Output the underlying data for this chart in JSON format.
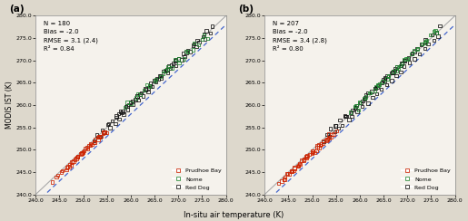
{
  "panel_a": {
    "label": "(a)",
    "stats_text": "N = 180\nBias = -2.0\nRMSE = 3.1 (2.4)\nR² = 0.84",
    "prudhoe_bay_x": [
      243.2,
      244.1,
      244.7,
      245.3,
      245.8,
      246.2,
      246.6,
      247.1,
      247.4,
      247.8,
      248.1,
      248.4,
      248.7,
      249.0,
      249.3,
      249.7,
      250.0,
      250.4,
      250.8,
      251.1,
      251.5,
      251.9,
      252.2,
      252.6,
      253.0,
      253.4,
      253.8,
      254.2,
      247.5,
      248.9,
      250.3,
      251.6,
      252.9,
      254.1,
      255.2,
      249.8,
      250.9,
      252.1,
      253.3,
      254.5,
      246.3,
      247.3,
      248.5,
      249.8
    ],
    "prudhoe_bay_y": [
      243.0,
      243.8,
      244.3,
      244.8,
      245.2,
      245.6,
      246.0,
      246.4,
      246.8,
      247.1,
      247.5,
      247.9,
      248.2,
      248.6,
      248.9,
      249.2,
      249.6,
      250.0,
      250.3,
      250.7,
      251.0,
      251.4,
      251.7,
      252.1,
      252.5,
      252.8,
      253.2,
      253.5,
      247.3,
      248.7,
      250.1,
      251.4,
      252.7,
      253.9,
      254.0,
      249.6,
      250.7,
      251.9,
      253.1,
      254.3,
      245.8,
      246.8,
      248.0,
      249.3
    ],
    "nome_x": [
      259.0,
      260.0,
      261.0,
      262.0,
      263.0,
      264.0,
      265.0,
      266.0,
      267.0,
      268.0,
      269.0,
      270.0,
      271.0,
      272.0,
      273.0,
      274.0,
      275.0,
      276.0,
      259.5,
      261.5,
      263.5,
      265.5,
      267.5,
      269.5,
      271.5,
      273.5,
      275.5,
      264.0,
      267.0,
      270.0
    ],
    "nome_y": [
      259.5,
      260.5,
      261.5,
      262.5,
      263.5,
      264.5,
      265.5,
      266.5,
      267.5,
      268.5,
      268.5,
      269.5,
      270.5,
      272.0,
      272.5,
      273.5,
      274.5,
      275.0,
      260.5,
      262.5,
      264.5,
      266.0,
      268.0,
      270.0,
      272.0,
      274.0,
      275.5,
      264.0,
      267.0,
      270.5
    ],
    "red_dog_x": [
      252.5,
      253.5,
      254.5,
      255.5,
      256.5,
      257.5,
      258.5,
      259.5,
      260.5,
      261.5,
      262.5,
      263.5,
      264.5,
      265.5,
      266.5,
      267.5,
      268.5,
      269.5,
      270.5,
      271.5,
      272.5,
      273.5,
      274.5,
      275.5,
      276.5,
      253.0,
      254.0,
      255.0,
      256.0,
      257.0,
      258.0,
      259.0,
      260.0,
      261.0,
      262.0,
      263.0,
      264.0,
      265.0,
      266.0,
      267.0,
      268.0,
      269.0,
      270.0,
      271.0,
      272.0,
      273.0,
      274.0,
      275.0,
      276.0,
      277.0,
      258.3,
      259.3,
      260.3,
      261.3,
      262.3,
      263.3,
      264.3,
      265.3,
      266.3,
      267.3,
      268.3,
      269.3,
      255.5,
      257.5,
      259.5,
      261.5,
      263.5,
      265.5,
      267.5,
      269.5,
      271.5,
      273.5,
      275.5,
      257.0,
      258.0
    ],
    "red_dog_y": [
      252.0,
      253.0,
      254.0,
      255.0,
      256.0,
      257.0,
      258.0,
      259.0,
      260.0,
      261.0,
      262.0,
      263.0,
      264.0,
      265.0,
      266.0,
      267.0,
      268.0,
      269.0,
      270.0,
      271.0,
      272.0,
      273.0,
      274.0,
      275.0,
      276.0,
      253.5,
      254.5,
      255.5,
      256.5,
      257.5,
      258.5,
      259.5,
      260.5,
      261.5,
      262.5,
      263.5,
      264.5,
      265.5,
      266.5,
      267.5,
      268.5,
      269.5,
      270.5,
      271.5,
      272.5,
      273.5,
      274.5,
      275.5,
      276.5,
      277.5,
      258.8,
      259.8,
      260.8,
      261.8,
      262.8,
      263.8,
      264.8,
      265.8,
      266.8,
      267.8,
      268.8,
      269.8,
      256.0,
      258.0,
      260.0,
      262.0,
      264.0,
      266.0,
      268.0,
      270.0,
      272.0,
      274.0,
      276.0,
      257.5,
      258.5
    ]
  },
  "panel_b": {
    "label": "(b)",
    "stats_text": "N = 207\nBias = -2.0\nRMSE = 3.4 (2.8)\nR² = 0.80",
    "prudhoe_bay_x": [
      242.8,
      243.5,
      244.0,
      244.5,
      245.0,
      245.5,
      246.0,
      246.5,
      247.0,
      247.5,
      248.0,
      248.5,
      249.0,
      249.5,
      250.0,
      250.5,
      251.0,
      251.5,
      252.0,
      252.5,
      253.0,
      253.5,
      254.0,
      254.5,
      244.8,
      246.2,
      247.5,
      248.8,
      250.0,
      251.2,
      252.4,
      253.6,
      245.5,
      247.0,
      248.5,
      250.0,
      251.5,
      253.0,
      244.0,
      245.0,
      246.0,
      247.0,
      248.0,
      249.0,
      250.0,
      251.0,
      252.0,
      253.0,
      254.0,
      255.0
    ],
    "prudhoe_bay_y": [
      242.5,
      243.0,
      243.5,
      244.0,
      244.5,
      245.0,
      245.5,
      246.0,
      246.5,
      247.0,
      247.5,
      248.0,
      248.5,
      249.0,
      249.5,
      249.5,
      250.0,
      250.5,
      251.0,
      251.5,
      252.0,
      252.5,
      253.0,
      253.5,
      244.5,
      245.8,
      247.0,
      248.3,
      249.5,
      250.8,
      252.0,
      253.3,
      245.0,
      246.5,
      248.0,
      249.5,
      251.0,
      252.5,
      243.5,
      244.5,
      245.5,
      246.5,
      247.5,
      248.5,
      249.5,
      250.5,
      251.5,
      252.5,
      253.5,
      254.5
    ],
    "nome_x": [
      258.0,
      259.0,
      260.0,
      261.0,
      262.0,
      263.0,
      264.0,
      265.0,
      266.0,
      267.0,
      268.0,
      269.0,
      270.0,
      271.0,
      272.0,
      273.0,
      274.0,
      275.0,
      276.0,
      259.5,
      261.5,
      263.5,
      265.5,
      267.5,
      269.5,
      271.5,
      273.5,
      275.5,
      260.0,
      262.0,
      264.0,
      266.0,
      268.0,
      270.0,
      272.0,
      274.0,
      276.0,
      259.5,
      264.0,
      268.5,
      273.0
    ],
    "nome_y": [
      258.5,
      259.5,
      260.5,
      261.5,
      262.5,
      263.5,
      264.5,
      265.5,
      266.5,
      267.5,
      268.5,
      269.5,
      270.5,
      271.5,
      272.5,
      273.5,
      274.5,
      275.5,
      276.5,
      260.0,
      262.0,
      264.0,
      266.0,
      268.0,
      270.0,
      272.0,
      274.0,
      276.5,
      260.5,
      262.5,
      264.5,
      266.5,
      268.5,
      270.5,
      272.5,
      274.5,
      276.5,
      259.0,
      264.5,
      269.0,
      273.5
    ],
    "red_dog_x": [
      252.5,
      253.5,
      254.5,
      255.5,
      256.5,
      257.5,
      258.5,
      259.5,
      260.5,
      261.5,
      262.5,
      263.5,
      264.5,
      265.5,
      266.5,
      267.5,
      268.5,
      269.5,
      270.5,
      271.5,
      272.5,
      273.5,
      274.5,
      275.5,
      276.5,
      253.0,
      254.0,
      255.0,
      256.0,
      257.0,
      258.0,
      259.0,
      260.0,
      261.0,
      262.0,
      263.0,
      264.0,
      265.0,
      266.0,
      267.0,
      268.0,
      269.0,
      270.0,
      271.0,
      272.0,
      273.0,
      274.0,
      275.0,
      276.0,
      277.0,
      258.5,
      259.5,
      260.5,
      261.5,
      262.5,
      263.5,
      264.5,
      265.5,
      266.5,
      267.5,
      268.5,
      269.5,
      255.0,
      257.0,
      259.0,
      261.0,
      263.0,
      265.0,
      267.0,
      269.0,
      271.0,
      273.0,
      257.0,
      261.0,
      263.5,
      265.5,
      267.5,
      269.5,
      271.5,
      273.5
    ],
    "red_dog_y": [
      252.0,
      253.0,
      254.0,
      255.0,
      255.5,
      256.5,
      257.5,
      258.5,
      259.5,
      260.5,
      261.5,
      262.5,
      263.5,
      264.5,
      265.5,
      266.5,
      267.5,
      268.5,
      269.5,
      270.5,
      271.5,
      272.5,
      273.5,
      274.5,
      275.5,
      253.5,
      254.5,
      255.5,
      256.5,
      257.5,
      258.5,
      259.5,
      260.5,
      261.5,
      262.5,
      263.5,
      264.5,
      265.5,
      266.5,
      267.5,
      268.5,
      269.5,
      270.5,
      271.5,
      272.5,
      273.5,
      274.5,
      275.5,
      276.5,
      277.5,
      259.0,
      260.0,
      261.0,
      262.0,
      263.0,
      264.0,
      265.0,
      266.0,
      267.0,
      268.0,
      269.0,
      270.0,
      255.5,
      257.5,
      259.5,
      261.5,
      263.5,
      265.5,
      267.5,
      269.5,
      271.5,
      273.5,
      257.5,
      261.5,
      264.0,
      266.0,
      268.0,
      270.0,
      272.0,
      274.0
    ]
  },
  "xlim": [
    240.0,
    280.0
  ],
  "ylim": [
    240.0,
    280.0
  ],
  "xticks": [
    240.0,
    245.0,
    250.0,
    255.0,
    260.0,
    265.0,
    270.0,
    275.0,
    280.0
  ],
  "yticks": [
    240.0,
    245.0,
    250.0,
    255.0,
    260.0,
    265.0,
    270.0,
    275.0,
    280.0
  ],
  "xlabel": "In-situ air temperature (K)",
  "ylabel": "MODIS IST (K)",
  "colors": {
    "prudhoe_bay": "#cc2200",
    "nome": "#228833",
    "red_dog": "#111111"
  },
  "fig_bg": "#ddd8cc",
  "axes_bg": "#f5f2ec"
}
